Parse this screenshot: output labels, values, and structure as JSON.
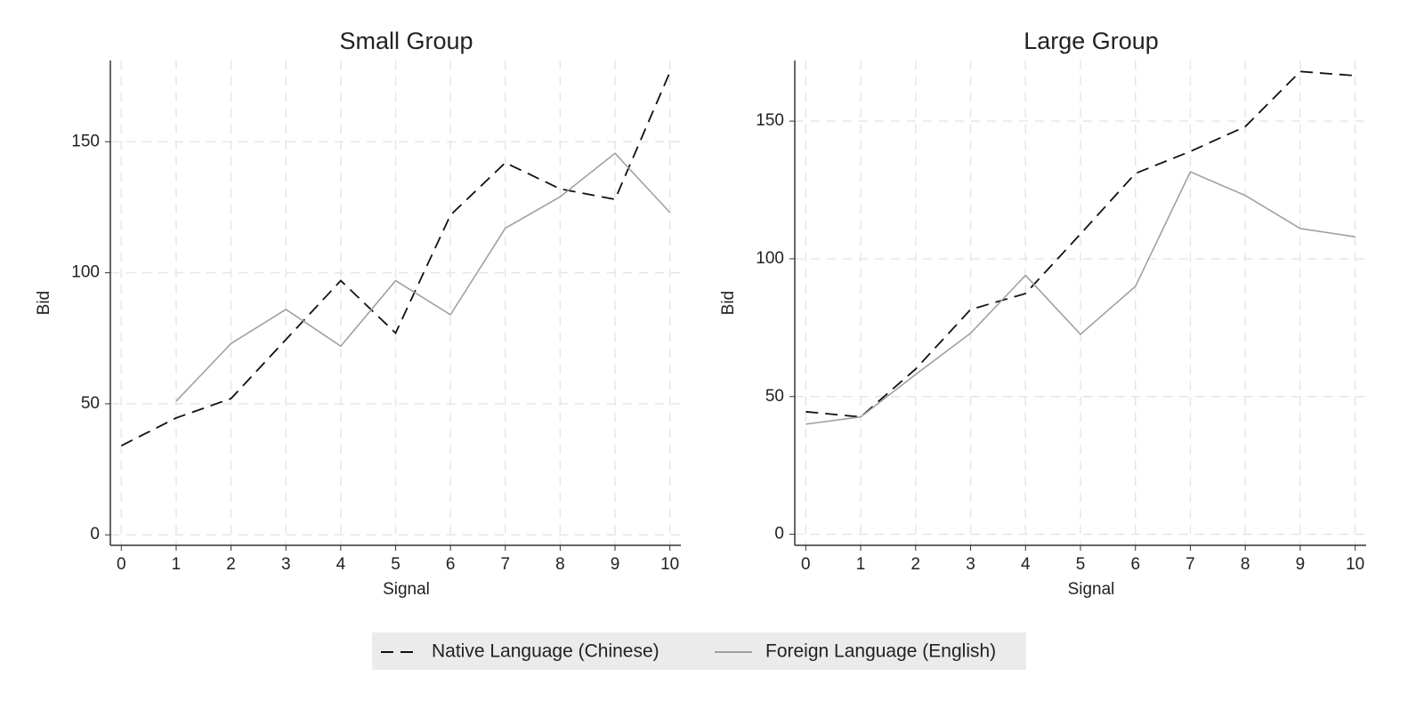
{
  "chart_data": [
    {
      "type": "line",
      "title": "Small Group",
      "x_label": "Signal",
      "y_label": "Bid",
      "x": [
        0,
        1,
        2,
        3,
        4,
        5,
        6,
        7,
        8,
        9,
        10
      ],
      "xlim": [
        -0.2,
        10.2
      ],
      "xticks": [
        0,
        1,
        2,
        3,
        4,
        5,
        6,
        7,
        8,
        9,
        10
      ],
      "ylim": [
        -4,
        181
      ],
      "yticks": [
        0,
        50,
        100,
        150
      ],
      "grid": true,
      "series": [
        {
          "name": "Native Language (Chinese)",
          "color": "#111111",
          "dash": true,
          "values": [
            34,
            44.6,
            52,
            74.5,
            97,
            77,
            122,
            142,
            132,
            128,
            176.5
          ]
        },
        {
          "name": "Foreign Language (English)",
          "color": "#a0a0a0",
          "dash": false,
          "values": [
            null,
            51,
            73,
            86,
            72,
            97,
            84,
            117,
            129,
            145.6,
            123
          ]
        }
      ]
    },
    {
      "type": "line",
      "title": "Large Group",
      "x_label": "Signal",
      "y_label": "Bid",
      "x": [
        0,
        1,
        2,
        3,
        4,
        5,
        6,
        7,
        8,
        9,
        10
      ],
      "xlim": [
        -0.2,
        10.2
      ],
      "xticks": [
        0,
        1,
        2,
        3,
        4,
        5,
        6,
        7,
        8,
        9,
        10
      ],
      "ylim": [
        -4,
        172
      ],
      "yticks": [
        0,
        50,
        100,
        150
      ],
      "grid": true,
      "series": [
        {
          "color": "#111111",
          "dash": true,
          "values": [
            44.5,
            42.6,
            60,
            81.6,
            87.4,
            109,
            131,
            139,
            148,
            168,
            166.5
          ]
        },
        {
          "color": "#a0a0a0",
          "dash": false,
          "values": [
            40,
            42.6,
            58,
            73,
            94,
            72.6,
            90,
            131.6,
            123,
            111,
            108
          ]
        }
      ]
    }
  ]
}
